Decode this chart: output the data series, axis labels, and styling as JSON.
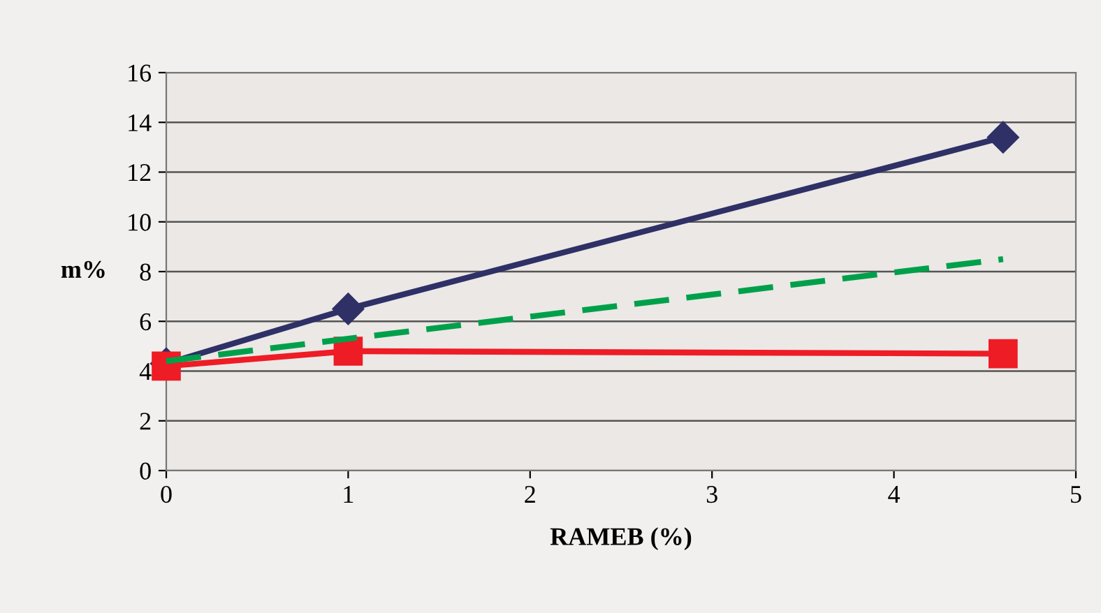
{
  "chart_data": {
    "type": "line",
    "xlabel": "RAMEB (%)",
    "ylabel": "m%",
    "x": [
      0,
      1,
      4.6
    ],
    "series": [
      {
        "color": "#2e3066",
        "values": [
          4.3,
          6.5,
          13.4
        ],
        "marker": "diamond",
        "line_style": "solid"
      },
      {
        "color": "#00a04a",
        "values": [
          4.4,
          5.3,
          8.5
        ],
        "marker": "none",
        "line_style": "dashed"
      },
      {
        "color": "#ee1c25",
        "values": [
          4.2,
          4.8,
          4.7
        ],
        "marker": "square",
        "line_style": "solid"
      }
    ],
    "xlim": [
      0,
      5
    ],
    "xticks": [
      0,
      1,
      2,
      3,
      4,
      5
    ],
    "ylim": [
      0,
      16
    ],
    "yticks": [
      0,
      2,
      4,
      6,
      8,
      10,
      12,
      14,
      16
    ],
    "grid": "y"
  }
}
